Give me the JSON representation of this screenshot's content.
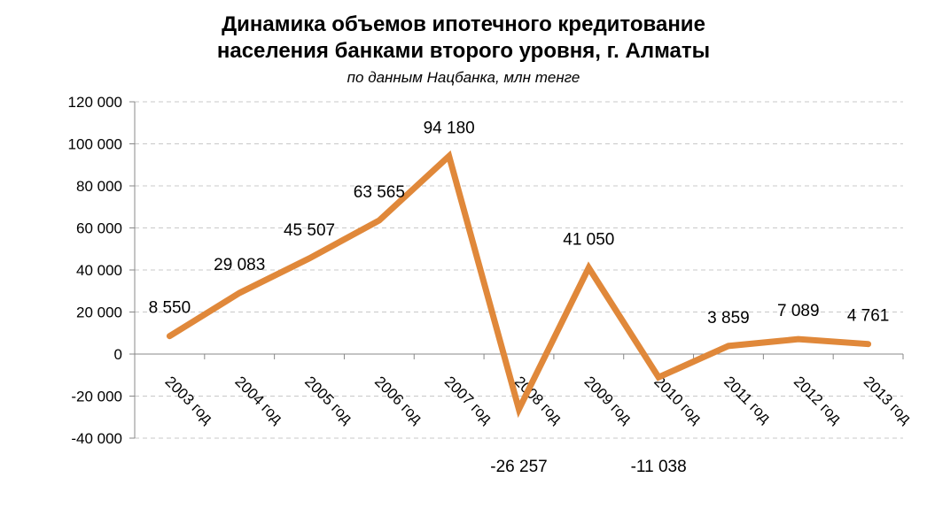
{
  "chart_data": {
    "type": "line",
    "title_line1": "Динамика объемов ипотечного кредитование",
    "title_line2": "населения банками второго уровня, г. Алматы",
    "subtitle": "по данным Нацбанка, млн тенге",
    "categories": [
      "2003 год",
      "2004 год",
      "2005 год",
      "2006 год",
      "2007 год",
      "2008 год",
      "2009 год",
      "2010 год",
      "2011 год",
      "2012 год",
      "2013 год"
    ],
    "values": [
      8550,
      29083,
      45507,
      63565,
      94180,
      -26257,
      41050,
      -11038,
      3859,
      7089,
      4761
    ],
    "data_labels": [
      "8 550",
      "29 083",
      "45 507",
      "63 565",
      "94 180",
      "-26 257",
      "41 050",
      "-11 038",
      "3 859",
      "7 089",
      "4 761"
    ],
    "ylim": [
      -40000,
      120000
    ],
    "ytick_values": [
      -40000,
      -20000,
      0,
      20000,
      40000,
      60000,
      80000,
      100000,
      120000
    ],
    "ytick_labels": [
      "-40 000",
      "-20 000",
      "0",
      "20 000",
      "40 000",
      "60 000",
      "80 000",
      "100 000",
      "120 000"
    ],
    "grid": true,
    "line_color": "#E0883A",
    "grid_color": "#C8C8C8",
    "legend": "none"
  }
}
